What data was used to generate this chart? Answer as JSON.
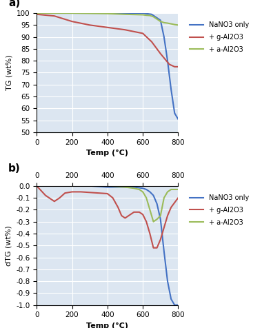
{
  "title_a": "a)",
  "title_b": "b)",
  "xlabel": "Temp (°C)",
  "ylabel_a": "TG (wt%)",
  "ylabel_b": "dTG (wt%)",
  "xlim": [
    0,
    800
  ],
  "ylim_a": [
    50,
    100
  ],
  "ylim_b": [
    -1,
    0
  ],
  "yticks_a": [
    50,
    55,
    60,
    65,
    70,
    75,
    80,
    85,
    90,
    95,
    100
  ],
  "yticks_b": [
    0,
    -0.1,
    -0.2,
    -0.3,
    -0.4,
    -0.5,
    -0.6,
    -0.7,
    -0.8,
    -0.9,
    -1.0
  ],
  "xticks": [
    0,
    200,
    400,
    600,
    800
  ],
  "colors": {
    "nano3": "#4472c4",
    "g_al2o3": "#c0504d",
    "a_al2o3": "#9bbb59"
  },
  "legend_labels": [
    "NaNO3 only",
    "+ g-Al2O3",
    "+ a-Al2O3"
  ],
  "background_plot": "#dce6f1",
  "grid_color": "#ffffff",
  "outer_bg": "#ffffff",
  "tg_nano3_x": [
    0,
    600,
    650,
    700,
    720,
    740,
    760,
    780,
    800
  ],
  "tg_nano3_y": [
    100,
    100,
    99.5,
    97,
    90,
    80,
    68,
    58,
    55.5
  ],
  "tg_g_al2o3_x": [
    0,
    100,
    200,
    300,
    400,
    500,
    600,
    650,
    700,
    750,
    780,
    800
  ],
  "tg_g_al2o3_y": [
    99.5,
    98.8,
    96.5,
    95.0,
    94.0,
    93.0,
    91.5,
    88.0,
    83.0,
    78.5,
    77.5,
    77.5
  ],
  "tg_a_al2o3_x": [
    0,
    200,
    400,
    500,
    600,
    620,
    640,
    660,
    680,
    700,
    720,
    740,
    760,
    780,
    800
  ],
  "tg_a_al2o3_y": [
    100,
    100,
    99.8,
    99.5,
    99.3,
    99.1,
    99.0,
    98.5,
    97.5,
    96.5,
    96.0,
    95.8,
    95.5,
    95.2,
    95.0
  ],
  "dtg_nano3_x": [
    0,
    100,
    200,
    300,
    400,
    500,
    550,
    600,
    620,
    640,
    660,
    680,
    700,
    720,
    740,
    760,
    780,
    800
  ],
  "dtg_nano3_y": [
    0,
    0,
    0,
    0,
    -0.01,
    -0.01,
    -0.01,
    -0.02,
    -0.03,
    -0.05,
    -0.08,
    -0.15,
    -0.28,
    -0.55,
    -0.8,
    -0.95,
    -1.0,
    -1.0
  ],
  "dtg_g_al2o3_x": [
    0,
    50,
    100,
    130,
    160,
    200,
    250,
    300,
    350,
    400,
    430,
    460,
    480,
    500,
    520,
    550,
    580,
    600,
    620,
    640,
    660,
    680,
    700,
    720,
    740,
    760,
    800
  ],
  "dtg_g_al2o3_y": [
    0,
    -0.08,
    -0.13,
    -0.1,
    -0.06,
    -0.05,
    -0.05,
    -0.055,
    -0.06,
    -0.065,
    -0.1,
    -0.18,
    -0.25,
    -0.27,
    -0.25,
    -0.22,
    -0.22,
    -0.24,
    -0.3,
    -0.4,
    -0.52,
    -0.52,
    -0.45,
    -0.35,
    -0.25,
    -0.18,
    -0.1
  ],
  "dtg_a_al2o3_x": [
    0,
    100,
    200,
    300,
    400,
    500,
    550,
    580,
    600,
    620,
    640,
    660,
    680,
    700,
    720,
    740,
    760,
    800
  ],
  "dtg_a_al2o3_y": [
    0,
    0,
    0,
    0,
    0,
    -0.01,
    -0.02,
    -0.03,
    -0.05,
    -0.1,
    -0.2,
    -0.3,
    -0.28,
    -0.25,
    -0.1,
    -0.05,
    -0.03,
    -0.03
  ]
}
